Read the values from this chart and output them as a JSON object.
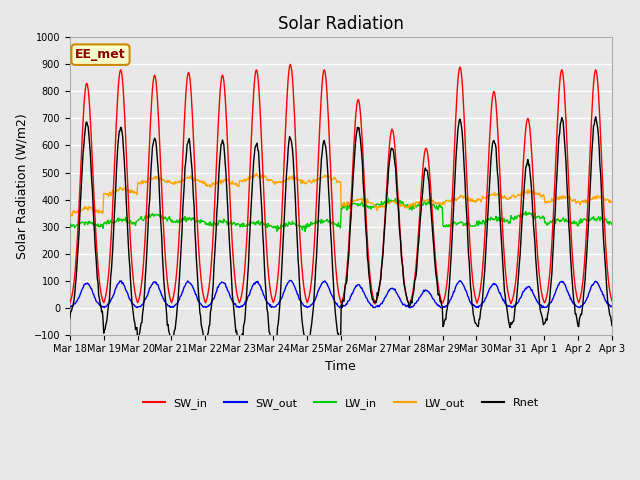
{
  "title": "Solar Radiation",
  "xlabel": "Time",
  "ylabel": "Solar Radiation (W/m2)",
  "ylim": [
    -100,
    1000
  ],
  "background_color": "#e8e8e8",
  "grid_color": "#ffffff",
  "legend_labels": [
    "SW_in",
    "SW_out",
    "LW_in",
    "LW_out",
    "Rnet"
  ],
  "legend_colors": [
    "#ff0000",
    "#0000ff",
    "#00cc00",
    "#ffa500",
    "#000000"
  ],
  "annotation_text": "EE_met",
  "annotation_bg": "#ffffcc",
  "annotation_border": "#cc8800",
  "n_days": 16,
  "sw_in_peaks": [
    830,
    880,
    860,
    870,
    860,
    880,
    900,
    880,
    770,
    660,
    590,
    890,
    800,
    700,
    880,
    880
  ],
  "lw_in_vals": [
    300,
    310,
    325,
    315,
    305,
    300,
    295,
    305,
    370,
    380,
    370,
    300,
    315,
    330,
    310,
    315
  ],
  "lw_out_vals": [
    350,
    420,
    460,
    460,
    450,
    470,
    460,
    465,
    380,
    370,
    380,
    390,
    400,
    410,
    390,
    390
  ]
}
